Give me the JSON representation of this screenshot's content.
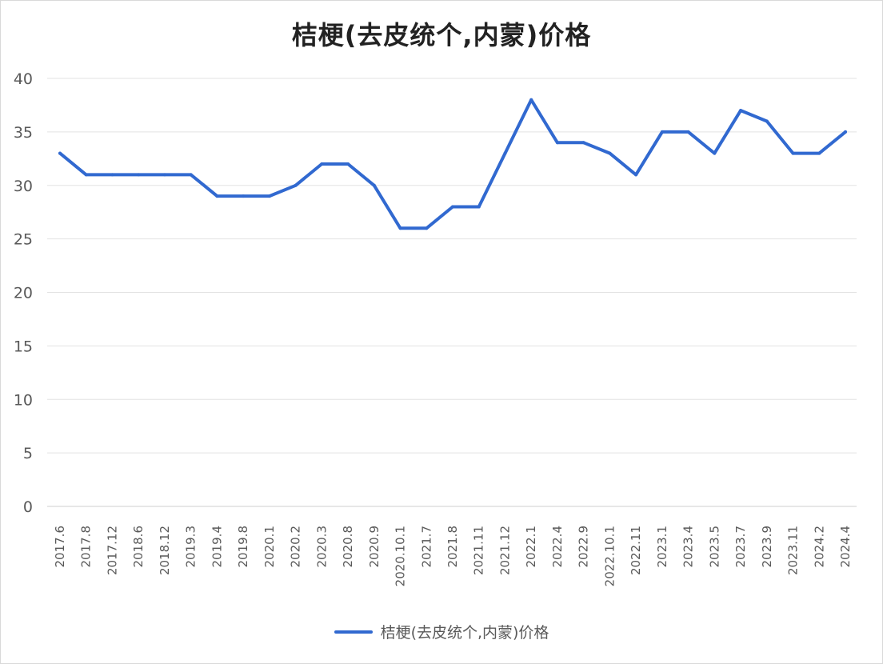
{
  "colors": {
    "series": "#3169D0",
    "grid": "#e3e3e3",
    "text": "#595959"
  },
  "chart_data": {
    "type": "line",
    "title": "桔梗(去皮统个,内蒙)价格",
    "x": [
      "2017.6",
      "2017.8",
      "2017.12",
      "2018.6",
      "2018.12",
      "2019.3",
      "2019.4",
      "2019.8",
      "2020.1",
      "2020.2",
      "2020.3",
      "2020.8",
      "2020.9",
      "2020.10.1",
      "2021.7",
      "2021.8",
      "2021.11",
      "2021.12",
      "2022.1",
      "2022.4",
      "2022.9",
      "2022.10.1",
      "2022.11",
      "2023.1",
      "2023.4",
      "2023.5",
      "2023.7",
      "2023.9",
      "2023.11",
      "2024.2",
      "2024.4"
    ],
    "series": [
      {
        "name": "桔梗(去皮统个,内蒙)价格",
        "values": [
          33,
          31,
          31,
          31,
          31,
          31,
          29,
          29,
          29,
          30,
          32,
          32,
          30,
          26,
          26,
          28,
          28,
          33,
          38,
          34,
          34,
          33,
          31,
          35,
          35,
          33,
          37,
          36,
          33,
          33,
          35
        ]
      }
    ],
    "yticks": [
      "0",
      "5",
      "10",
      "15",
      "20",
      "25",
      "30",
      "35",
      "40"
    ],
    "ylim": [
      0,
      40
    ],
    "grid": true,
    "legend_position": "bottom"
  }
}
